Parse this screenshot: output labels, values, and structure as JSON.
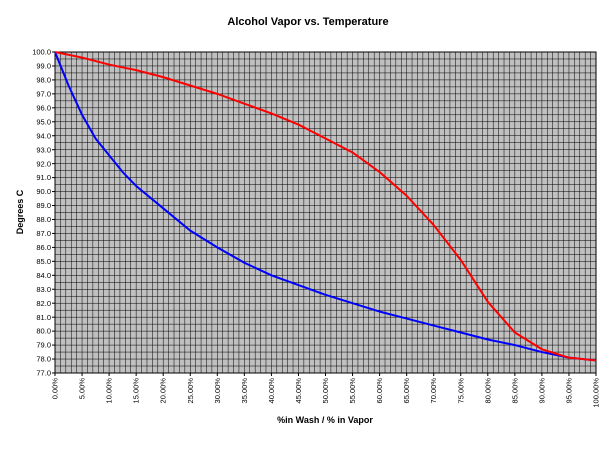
{
  "chart_data": {
    "type": "line",
    "title": "Alcohol Vapor vs. Temperature",
    "xlabel": "%in Wash / % in Vapor",
    "ylabel": "Degrees C",
    "xlim": [
      0,
      100
    ],
    "ylim": [
      77,
      100
    ],
    "grid": true,
    "x_ticks": [
      "0.00%",
      "5.00%",
      "10.00%",
      "15.00%",
      "20.00%",
      "25.00%",
      "30.00%",
      "35.00%",
      "40.00%",
      "45.00%",
      "50.00%",
      "55.00%",
      "60.00%",
      "65.00%",
      "70.00%",
      "75.00%",
      "80.00%",
      "85.00%",
      "90.00%",
      "95.00%",
      "100.00%"
    ],
    "y_ticks": [
      "77.0",
      "78.0",
      "79.0",
      "80.0",
      "81.0",
      "82.0",
      "83.0",
      "84.0",
      "85.0",
      "86.0",
      "87.0",
      "88.0",
      "89.0",
      "90.0",
      "91.0",
      "92.0",
      "93.0",
      "94.0",
      "95.0",
      "96.0",
      "97.0",
      "98.0",
      "99.0",
      "100.0"
    ],
    "series": [
      {
        "color": "#0000ff",
        "points": [
          [
            0,
            100
          ],
          [
            2.5,
            97.6
          ],
          [
            5,
            95.5
          ],
          [
            7.5,
            93.8
          ],
          [
            10,
            92.6
          ],
          [
            12.5,
            91.4
          ],
          [
            15,
            90.4
          ],
          [
            20,
            88.8
          ],
          [
            25,
            87.2
          ],
          [
            30,
            86.0
          ],
          [
            35,
            84.9
          ],
          [
            40,
            84.0
          ],
          [
            45,
            83.3
          ],
          [
            50,
            82.6
          ],
          [
            55,
            82.0
          ],
          [
            60,
            81.4
          ],
          [
            65,
            80.9
          ],
          [
            70,
            80.4
          ],
          [
            75,
            79.9
          ],
          [
            80,
            79.4
          ],
          [
            85,
            79.0
          ],
          [
            90,
            78.5
          ],
          [
            95,
            78.1
          ],
          [
            100,
            77.9
          ]
        ]
      },
      {
        "color": "#ff0000",
        "points": [
          [
            0,
            100
          ],
          [
            5,
            99.6
          ],
          [
            10,
            99.1
          ],
          [
            15,
            98.7
          ],
          [
            20,
            98.2
          ],
          [
            25,
            97.6
          ],
          [
            30,
            97.0
          ],
          [
            35,
            96.3
          ],
          [
            40,
            95.6
          ],
          [
            45,
            94.8
          ],
          [
            50,
            93.8
          ],
          [
            55,
            92.8
          ],
          [
            60,
            91.4
          ],
          [
            65,
            89.7
          ],
          [
            70,
            87.6
          ],
          [
            75,
            85.1
          ],
          [
            80,
            82.1
          ],
          [
            85,
            79.9
          ],
          [
            90,
            78.7
          ],
          [
            95,
            78.1
          ],
          [
            100,
            77.9
          ]
        ]
      }
    ]
  }
}
